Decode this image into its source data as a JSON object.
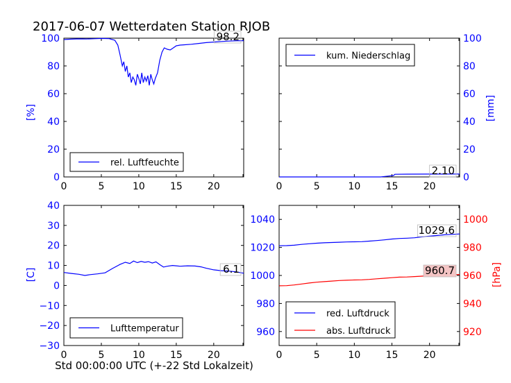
{
  "title": "2017-06-07 Wetterdaten Station RJOB",
  "xlabel": "Std 00:00:00 UTC (+-22 Std Lokalzeit)",
  "colors": {
    "blue": "#0000ff",
    "red": "#ff0000",
    "axis": "#000000"
  },
  "chart_data": [
    {
      "id": "humidity",
      "type": "line",
      "xlim": [
        0,
        24
      ],
      "ylim": [
        0,
        100
      ],
      "xticks": [
        "0",
        "5",
        "10",
        "15",
        "20"
      ],
      "yticks": [
        "0",
        "20",
        "40",
        "60",
        "80",
        "100"
      ],
      "ylabel": "[%]",
      "legend": "top-left? no: lower-left",
      "series": [
        {
          "name": "rel. Luftfeuchte",
          "color": "#0000ff",
          "x": [
            0,
            1,
            2,
            3,
            4,
            5,
            6,
            6.8,
            7.2,
            7.5,
            7.8,
            8.0,
            8.2,
            8.4,
            8.6,
            8.8,
            9.0,
            9.2,
            9.4,
            9.6,
            9.8,
            10.0,
            10.2,
            10.4,
            10.6,
            10.8,
            11.0,
            11.2,
            11.4,
            11.6,
            11.8,
            12.0,
            12.2,
            12.5,
            12.8,
            13.1,
            13.4,
            13.8,
            14.2,
            14.6,
            15.0,
            15.5,
            16,
            17,
            18,
            19,
            20,
            21,
            22,
            23,
            24
          ],
          "values": [
            99,
            99.3,
            99.5,
            99.4,
            99.6,
            99.8,
            99.7,
            98.5,
            95,
            88,
            80,
            83,
            76,
            80,
            72,
            75,
            68,
            72,
            70,
            66,
            74,
            71,
            67,
            75,
            68,
            72,
            69,
            73,
            66,
            74,
            70,
            67,
            71,
            75,
            84,
            90,
            93,
            92,
            91.5,
            93,
            94.5,
            95,
            95.2,
            95.6,
            96.2,
            96.8,
            97.2,
            97.6,
            97.9,
            98.1,
            98.2
          ]
        }
      ],
      "annotation": "98.2"
    },
    {
      "id": "precipitation",
      "type": "line",
      "xlim": [
        0,
        24
      ],
      "ylim": [
        0,
        100
      ],
      "xticks": [
        "0",
        "5",
        "10",
        "15",
        "20"
      ],
      "yticks": [
        "0",
        "20",
        "40",
        "60",
        "80",
        "100"
      ],
      "ylabel": "[mm]",
      "legend": "upper-left",
      "series": [
        {
          "name": "kum. Niederschlag",
          "color": "#0000ff",
          "x": [
            0,
            13.5,
            14.5,
            15.2,
            15.4,
            17,
            20,
            24
          ],
          "values": [
            0,
            0,
            0.6,
            1.0,
            1.9,
            2.0,
            2.05,
            2.1
          ]
        }
      ],
      "annotation": "2.10"
    },
    {
      "id": "temperature",
      "type": "line",
      "xlim": [
        0,
        24
      ],
      "ylim": [
        -30,
        40
      ],
      "xticks": [
        "0",
        "5",
        "10",
        "15",
        "20"
      ],
      "yticks": [
        "−30",
        "−20",
        "−10",
        "0",
        "10",
        "20",
        "30",
        "40"
      ],
      "ylabel": "[C]",
      "legend": "lower-left",
      "series": [
        {
          "name": "Lufttemperatur",
          "color": "#0000ff",
          "x": [
            0,
            1,
            2,
            2.8,
            3.5,
            4.5,
            5.5,
            6.5,
            7.5,
            8.2,
            8.8,
            9.3,
            9.8,
            10.3,
            10.8,
            11.3,
            11.8,
            12.3,
            12.8,
            13.3,
            13.8,
            14.5,
            15.5,
            16.5,
            17.5,
            18.3,
            19,
            20,
            21,
            22,
            23,
            24
          ],
          "values": [
            6.5,
            6.0,
            5.6,
            5.0,
            5.4,
            5.8,
            6.3,
            8.5,
            10.5,
            11.6,
            11.0,
            12.2,
            11.4,
            12.0,
            11.6,
            11.9,
            11.2,
            11.8,
            10.4,
            9.2,
            9.6,
            10.0,
            9.6,
            9.8,
            9.7,
            9.3,
            8.6,
            7.8,
            7.4,
            7.2,
            6.8,
            6.1
          ]
        }
      ],
      "annotation": "6.1"
    },
    {
      "id": "pressure",
      "type": "line",
      "xlim": [
        0,
        24
      ],
      "ylim_left": [
        950,
        1050
      ],
      "ylim_right": [
        910,
        1010
      ],
      "xticks": [
        "0",
        "5",
        "10",
        "15",
        "20"
      ],
      "yticks_left": [
        "960",
        "980",
        "1000",
        "1020",
        "1040"
      ],
      "yticks_right": [
        "920",
        "940",
        "960",
        "980",
        "1000"
      ],
      "ylabel_right": "[hPa]",
      "legend": "lower-left",
      "series": [
        {
          "name": "red. Luftdruck",
          "color": "#0000ff",
          "axis": "left",
          "x": [
            0,
            1,
            2,
            3,
            4,
            5,
            6,
            7,
            8,
            9,
            10,
            11,
            12,
            13,
            14,
            15,
            16,
            17,
            18,
            19,
            20,
            21,
            22,
            23,
            24
          ],
          "values": [
            1021.2,
            1021.3,
            1021.6,
            1022.2,
            1022.6,
            1023.0,
            1023.3,
            1023.5,
            1023.7,
            1023.9,
            1024.0,
            1024.1,
            1024.5,
            1024.9,
            1025.4,
            1026.0,
            1026.4,
            1026.6,
            1026.9,
            1027.5,
            1028.0,
            1028.5,
            1029.0,
            1029.3,
            1029.6
          ]
        },
        {
          "name": "abs. Luftdruck",
          "color": "#ff0000",
          "axis": "right",
          "x": [
            0,
            1,
            2,
            3,
            4,
            5,
            6,
            7,
            8,
            9,
            10,
            11,
            12,
            13,
            14,
            15,
            16,
            17,
            18,
            19,
            20,
            21,
            22,
            23,
            24
          ],
          "values": [
            952.6,
            952.7,
            953.2,
            953.9,
            954.6,
            955.2,
            955.6,
            956.0,
            956.4,
            956.6,
            956.8,
            956.9,
            957.2,
            957.6,
            958.0,
            958.4,
            958.8,
            958.9,
            959.2,
            959.5,
            959.8,
            960.1,
            960.3,
            960.5,
            960.7
          ]
        }
      ],
      "annotations": [
        "1029.6",
        "960.7"
      ]
    }
  ]
}
